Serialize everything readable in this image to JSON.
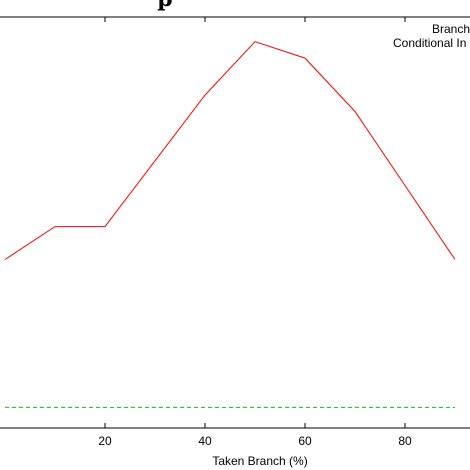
{
  "chart_data": {
    "type": "line",
    "title": "p",
    "xlabel": "Taken Branch (%)",
    "ylabel": "",
    "xlim": [
      -1,
      93
    ],
    "ylim": [
      0,
      100
    ],
    "x_ticks": [
      20,
      40,
      60,
      80
    ],
    "grid": false,
    "legend": {
      "placement": "top-right",
      "entries": [
        "Branch",
        "Conditional In"
      ]
    },
    "series": [
      {
        "name": "Branch",
        "color": "#ff0000",
        "style": "solid",
        "x": [
          0,
          10,
          20,
          30,
          40,
          50,
          60,
          70,
          80,
          90
        ],
        "y": [
          41,
          49,
          49,
          65,
          81,
          94,
          90,
          77,
          59,
          41
        ]
      },
      {
        "name": "Conditional In",
        "color": "#00cc00",
        "style": "dashed",
        "x": [
          0,
          90
        ],
        "y": [
          5,
          5
        ]
      }
    ]
  }
}
